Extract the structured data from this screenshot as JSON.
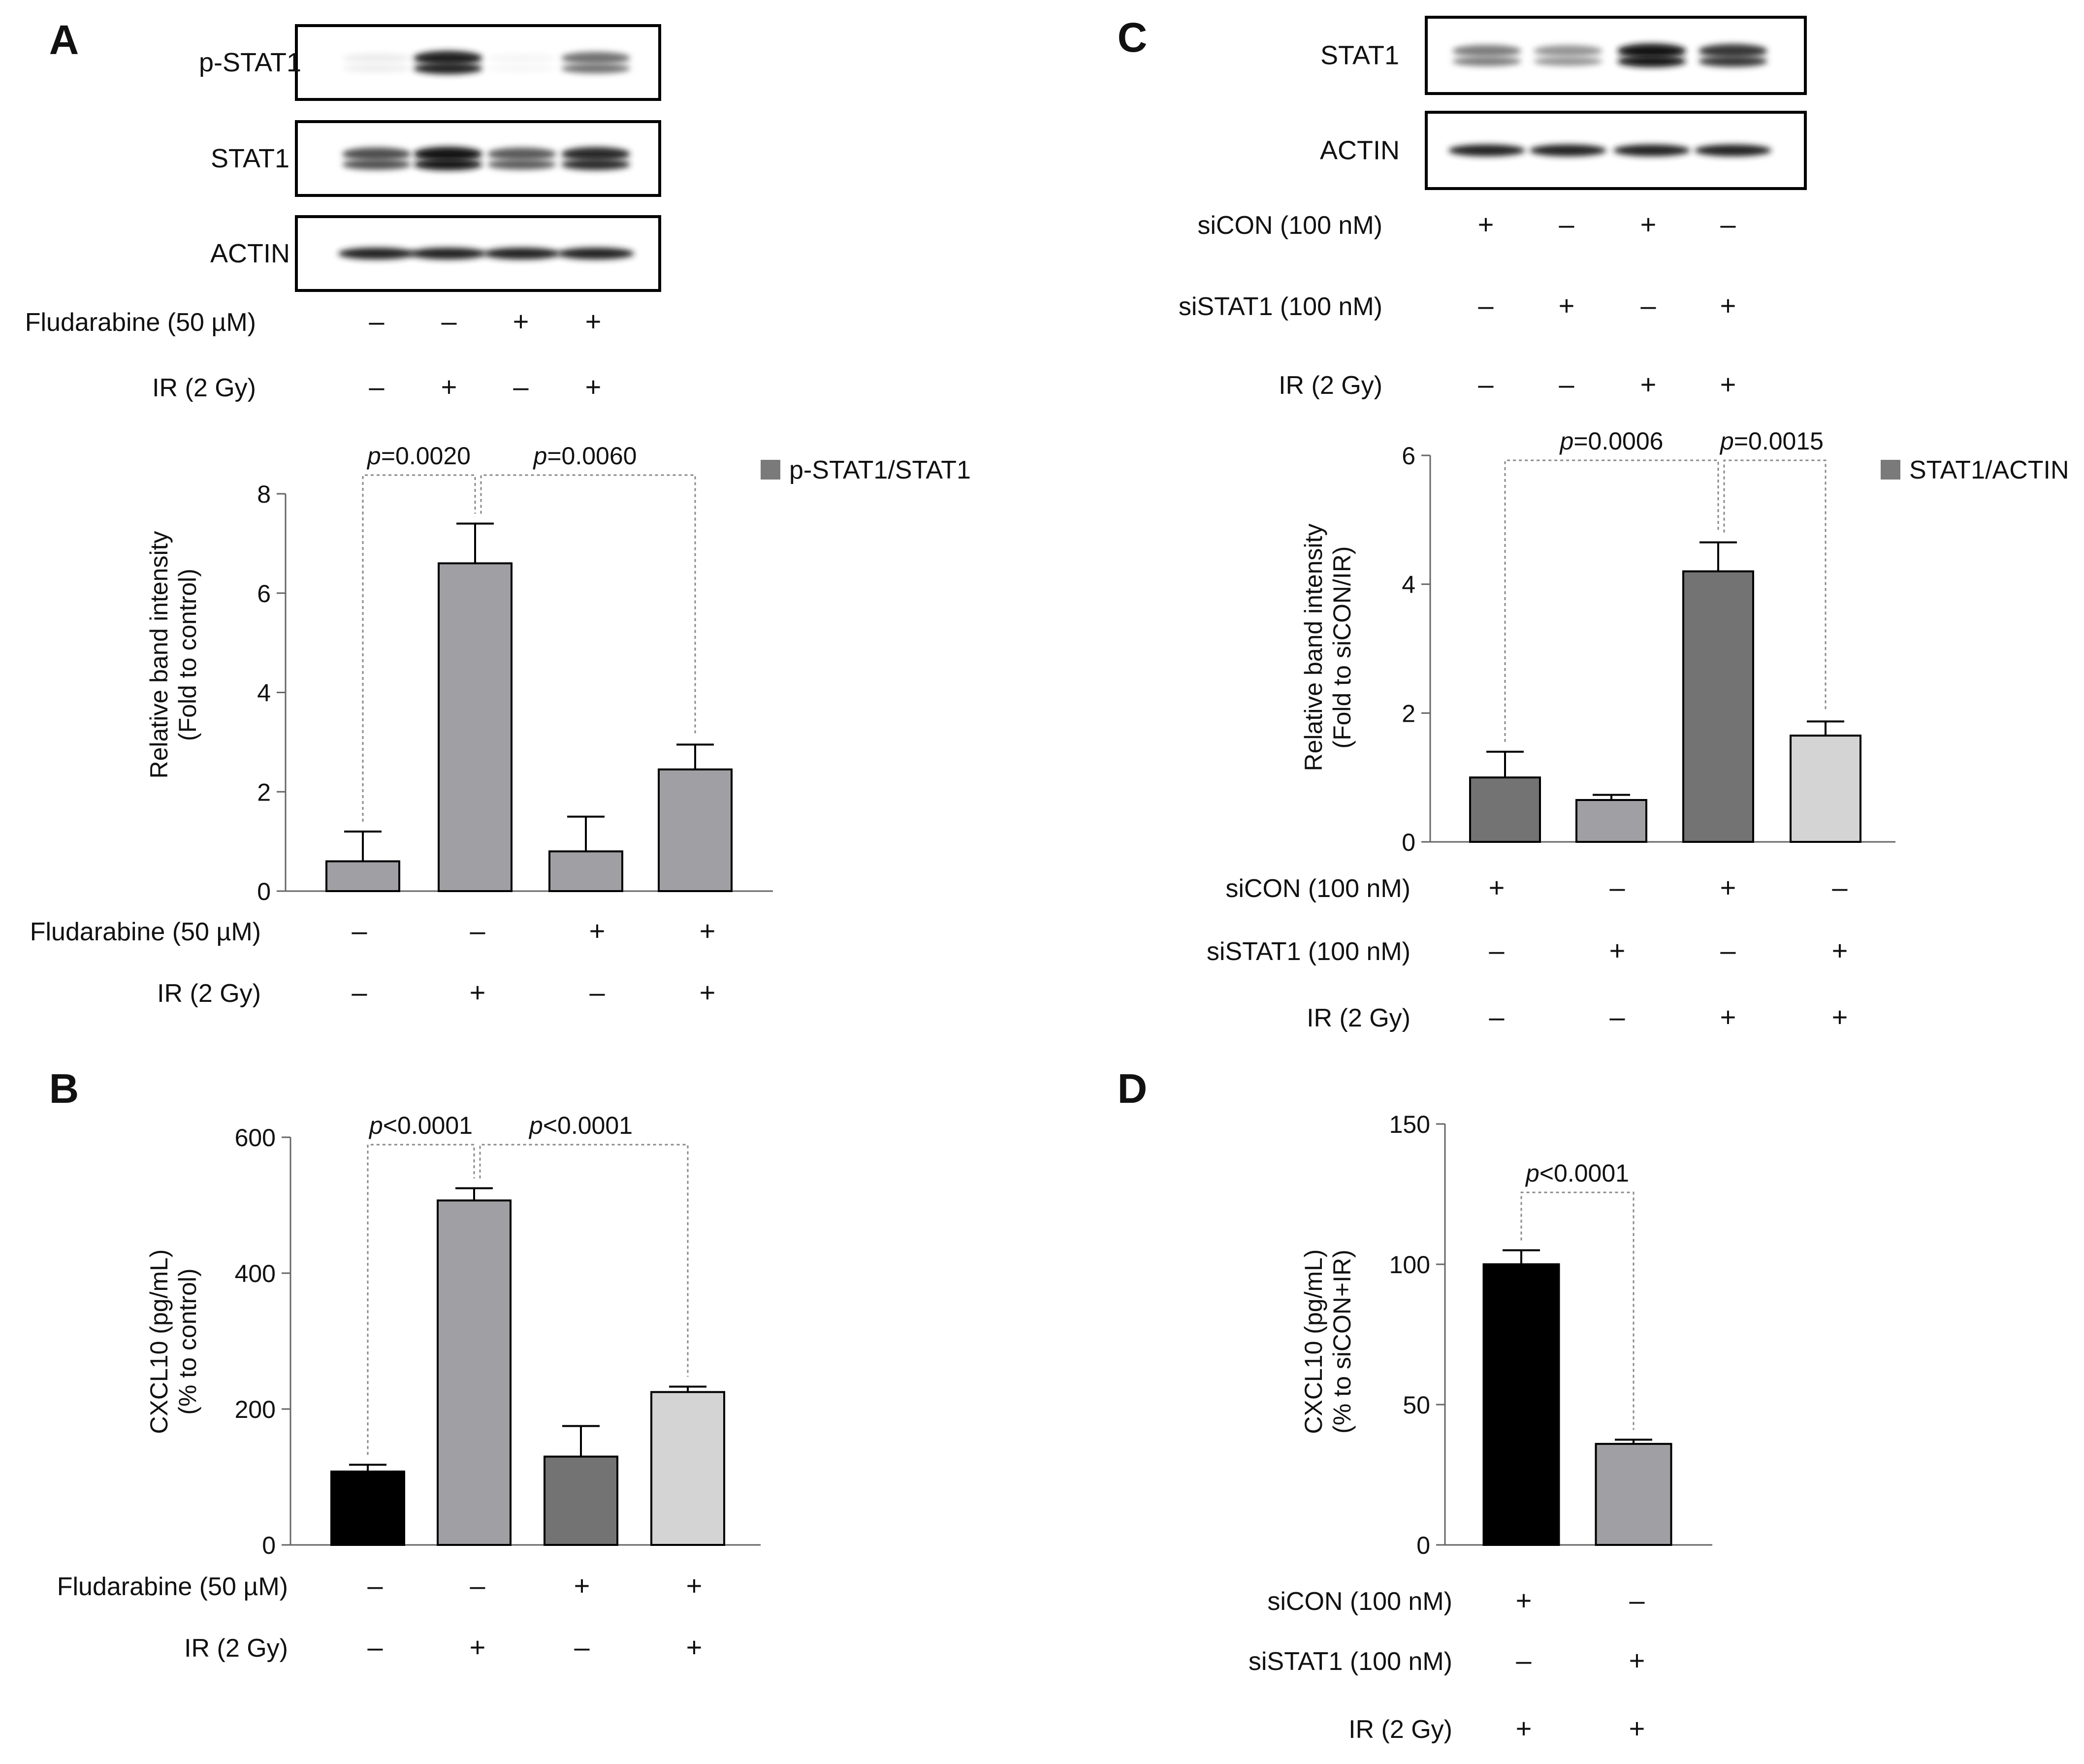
{
  "colors": {
    "axis": "#666666",
    "bar_stroke": "#000000",
    "bracket": "#888888",
    "black": "#000000",
    "dark_gray": "#737373",
    "medium_gray": "#a0a0a4",
    "light_gray": "#d4d4d4",
    "legend_gray": "#7a7a7a"
  },
  "panels": {
    "A": {
      "letter": "A",
      "blots": [
        {
          "label": "p-STAT1",
          "band_intensity": [
            0.08,
            0.95,
            0.04,
            0.6
          ]
        },
        {
          "label": "STAT1",
          "band_intensity": [
            0.75,
            1.0,
            0.7,
            0.9
          ]
        },
        {
          "label": "ACTIN",
          "band_intensity": [
            0.95,
            0.95,
            0.95,
            0.95
          ]
        }
      ],
      "blot_conditions": [
        {
          "label": "Fludarabine (50 µM)",
          "signs": [
            "–",
            "–",
            "+",
            "+"
          ]
        },
        {
          "label": "IR (2 Gy)",
          "signs": [
            "–",
            "+",
            "–",
            "+"
          ]
        }
      ],
      "conditions": [
        {
          "label": "Fludarabine (50 µM)",
          "signs": [
            "–",
            "–",
            "+",
            "+"
          ]
        },
        {
          "label": "IR (2 Gy)",
          "signs": [
            "–",
            "+",
            "–",
            "+"
          ]
        }
      ]
    },
    "B": {
      "letter": "B",
      "conditions": [
        {
          "label": "Fludarabine (50 µM)",
          "signs": [
            "–",
            "–",
            "+",
            "+"
          ]
        },
        {
          "label": "IR (2 Gy)",
          "signs": [
            "–",
            "+",
            "–",
            "+"
          ]
        }
      ]
    },
    "C": {
      "letter": "C",
      "blots": [
        {
          "label": "STAT1",
          "band_intensity": [
            0.55,
            0.45,
            1.0,
            0.85
          ]
        },
        {
          "label": "ACTIN",
          "band_intensity": [
            0.95,
            0.95,
            0.95,
            0.95
          ]
        }
      ],
      "blot_conditions": [
        {
          "label": "siCON (100 nM)",
          "signs": [
            "+",
            "–",
            "+",
            "–"
          ]
        },
        {
          "label": "siSTAT1 (100 nM)",
          "signs": [
            "–",
            "+",
            "–",
            "+"
          ]
        },
        {
          "label": "IR (2 Gy)",
          "signs": [
            "–",
            "–",
            "+",
            "+"
          ]
        }
      ],
      "conditions": [
        {
          "label": "siCON (100 nM)",
          "signs": [
            "+",
            "–",
            "+",
            "–"
          ]
        },
        {
          "label": "siSTAT1 (100 nM)",
          "signs": [
            "–",
            "+",
            "–",
            "+"
          ]
        },
        {
          "label": "IR (2 Gy)",
          "signs": [
            "–",
            "–",
            "+",
            "+"
          ]
        }
      ]
    },
    "D": {
      "letter": "D",
      "conditions": [
        {
          "label": "siCON (100 nM)",
          "signs": [
            "+",
            "–"
          ]
        },
        {
          "label": "siSTAT1 (100 nM)",
          "signs": [
            "–",
            "+"
          ]
        },
        {
          "label": "IR (2 Gy)",
          "signs": [
            "+",
            "+"
          ]
        }
      ]
    }
  },
  "chart_data": [
    {
      "panel": "A",
      "type": "bar",
      "ylabel_lines": [
        "Relative band intensity",
        "(Fold to control)"
      ],
      "ylim": [
        0,
        8
      ],
      "yticks": [
        0,
        2,
        4,
        6,
        8
      ],
      "values": [
        0.6,
        6.6,
        0.8,
        2.45
      ],
      "errors": [
        0.6,
        0.8,
        0.7,
        0.5
      ],
      "colors": [
        "#a0a0a4",
        "#a0a0a4",
        "#a0a0a4",
        "#a0a0a4"
      ],
      "legend": "p-STAT1/STAT1",
      "legend_placement": "top-right",
      "comparisons": [
        {
          "from": 0,
          "to": 1,
          "label": "=0.0020"
        },
        {
          "from": 1,
          "to": 3,
          "label": "=0.0060"
        }
      ]
    },
    {
      "panel": "B",
      "type": "bar",
      "ylabel_lines": [
        "CXCL10 (pg/mL)",
        "(% to control)"
      ],
      "ylim": [
        0,
        600
      ],
      "yticks": [
        0,
        200,
        400,
        600
      ],
      "values": [
        108,
        507,
        130,
        225
      ],
      "errors": [
        10,
        18,
        45,
        8
      ],
      "colors": [
        "#000000",
        "#a0a0a4",
        "#737373",
        "#d4d4d4"
      ],
      "comparisons": [
        {
          "from": 0,
          "to": 1,
          "label": "<0.0001"
        },
        {
          "from": 1,
          "to": 3,
          "label": "<0.0001"
        }
      ]
    },
    {
      "panel": "C",
      "type": "bar",
      "ylabel_lines": [
        "Relative band intensity",
        "(Fold to siCON/IR)"
      ],
      "ylim": [
        0,
        6
      ],
      "yticks": [
        0,
        2,
        4,
        6
      ],
      "values": [
        1.0,
        0.65,
        4.2,
        1.65
      ],
      "errors": [
        0.4,
        0.08,
        0.45,
        0.22
      ],
      "colors": [
        "#737373",
        "#a0a0a4",
        "#737373",
        "#d4d4d4"
      ],
      "legend": "STAT1/ACTIN",
      "legend_placement": "top-right",
      "comparisons": [
        {
          "from": 0,
          "to": 2,
          "label": "=0.0006"
        },
        {
          "from": 2,
          "to": 3,
          "label": "=0.0015"
        }
      ]
    },
    {
      "panel": "D",
      "type": "bar",
      "ylabel_lines": [
        "CXCL10 (pg/mL)",
        "(% to siCON+IR)"
      ],
      "ylim": [
        0,
        150
      ],
      "yticks": [
        0,
        50,
        100,
        150
      ],
      "values": [
        100,
        36
      ],
      "errors": [
        5,
        1.5
      ],
      "colors": [
        "#000000",
        "#a0a0a4"
      ],
      "comparisons": [
        {
          "from": 0,
          "to": 1,
          "label": "<0.0001"
        }
      ]
    }
  ]
}
